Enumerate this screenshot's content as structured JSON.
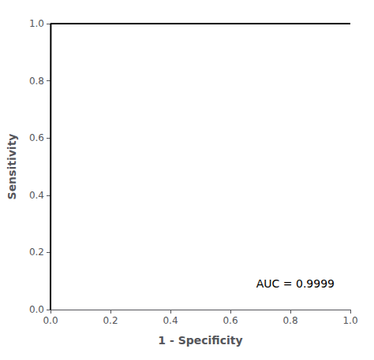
{
  "chart_data": {
    "type": "line",
    "x": [
      0.0,
      0.001,
      1.0
    ],
    "values": [
      0.0,
      1.0,
      1.0
    ],
    "color": "#000000",
    "xlabel": "1 - Specificity",
    "ylabel": "Sensitivity",
    "annotation": "AUC = 0.9999",
    "xlim": [
      0.0,
      1.0
    ],
    "ylim": [
      0.0,
      1.0
    ],
    "xticks": [
      {
        "value": 0.0,
        "label": "0.0"
      },
      0.2,
      0.4,
      0.6,
      0.8,
      {
        "value": 1.0,
        "label": "1.0"
      }
    ],
    "yticks": [
      {
        "value": 0.0,
        "label": "0.0"
      },
      0.2,
      0.4,
      0.6,
      0.8,
      {
        "value": 1.0,
        "label": "1.0"
      }
    ],
    "grid": false
  }
}
